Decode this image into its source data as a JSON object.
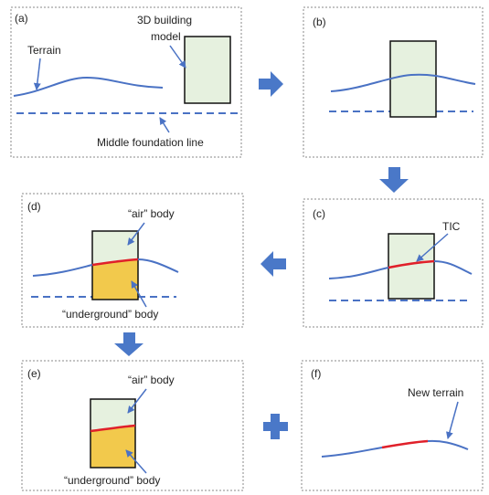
{
  "panels": {
    "a": {
      "label": "(a)"
    },
    "b": {
      "label": "(b)"
    },
    "c": {
      "label": "(c)"
    },
    "d": {
      "label": "(d)"
    },
    "e": {
      "label": "(e)"
    },
    "f": {
      "label": "(f)"
    }
  },
  "annotations": {
    "terrain": "Terrain",
    "building_line1": "3D building",
    "building_line2": "model",
    "middle_foundation": "Middle foundation line",
    "tic": "TIC",
    "air_body": "“air” body",
    "underground_body": "“underground” body",
    "new_terrain": "New terrain"
  },
  "colors": {
    "terrain": "#4a72c4",
    "intersection": "#e0202a",
    "building_fill": "#e6f1df",
    "underground_fill": "#f2c94c",
    "flow_arrow": "#4a78c8",
    "panel_border": "#888888"
  }
}
